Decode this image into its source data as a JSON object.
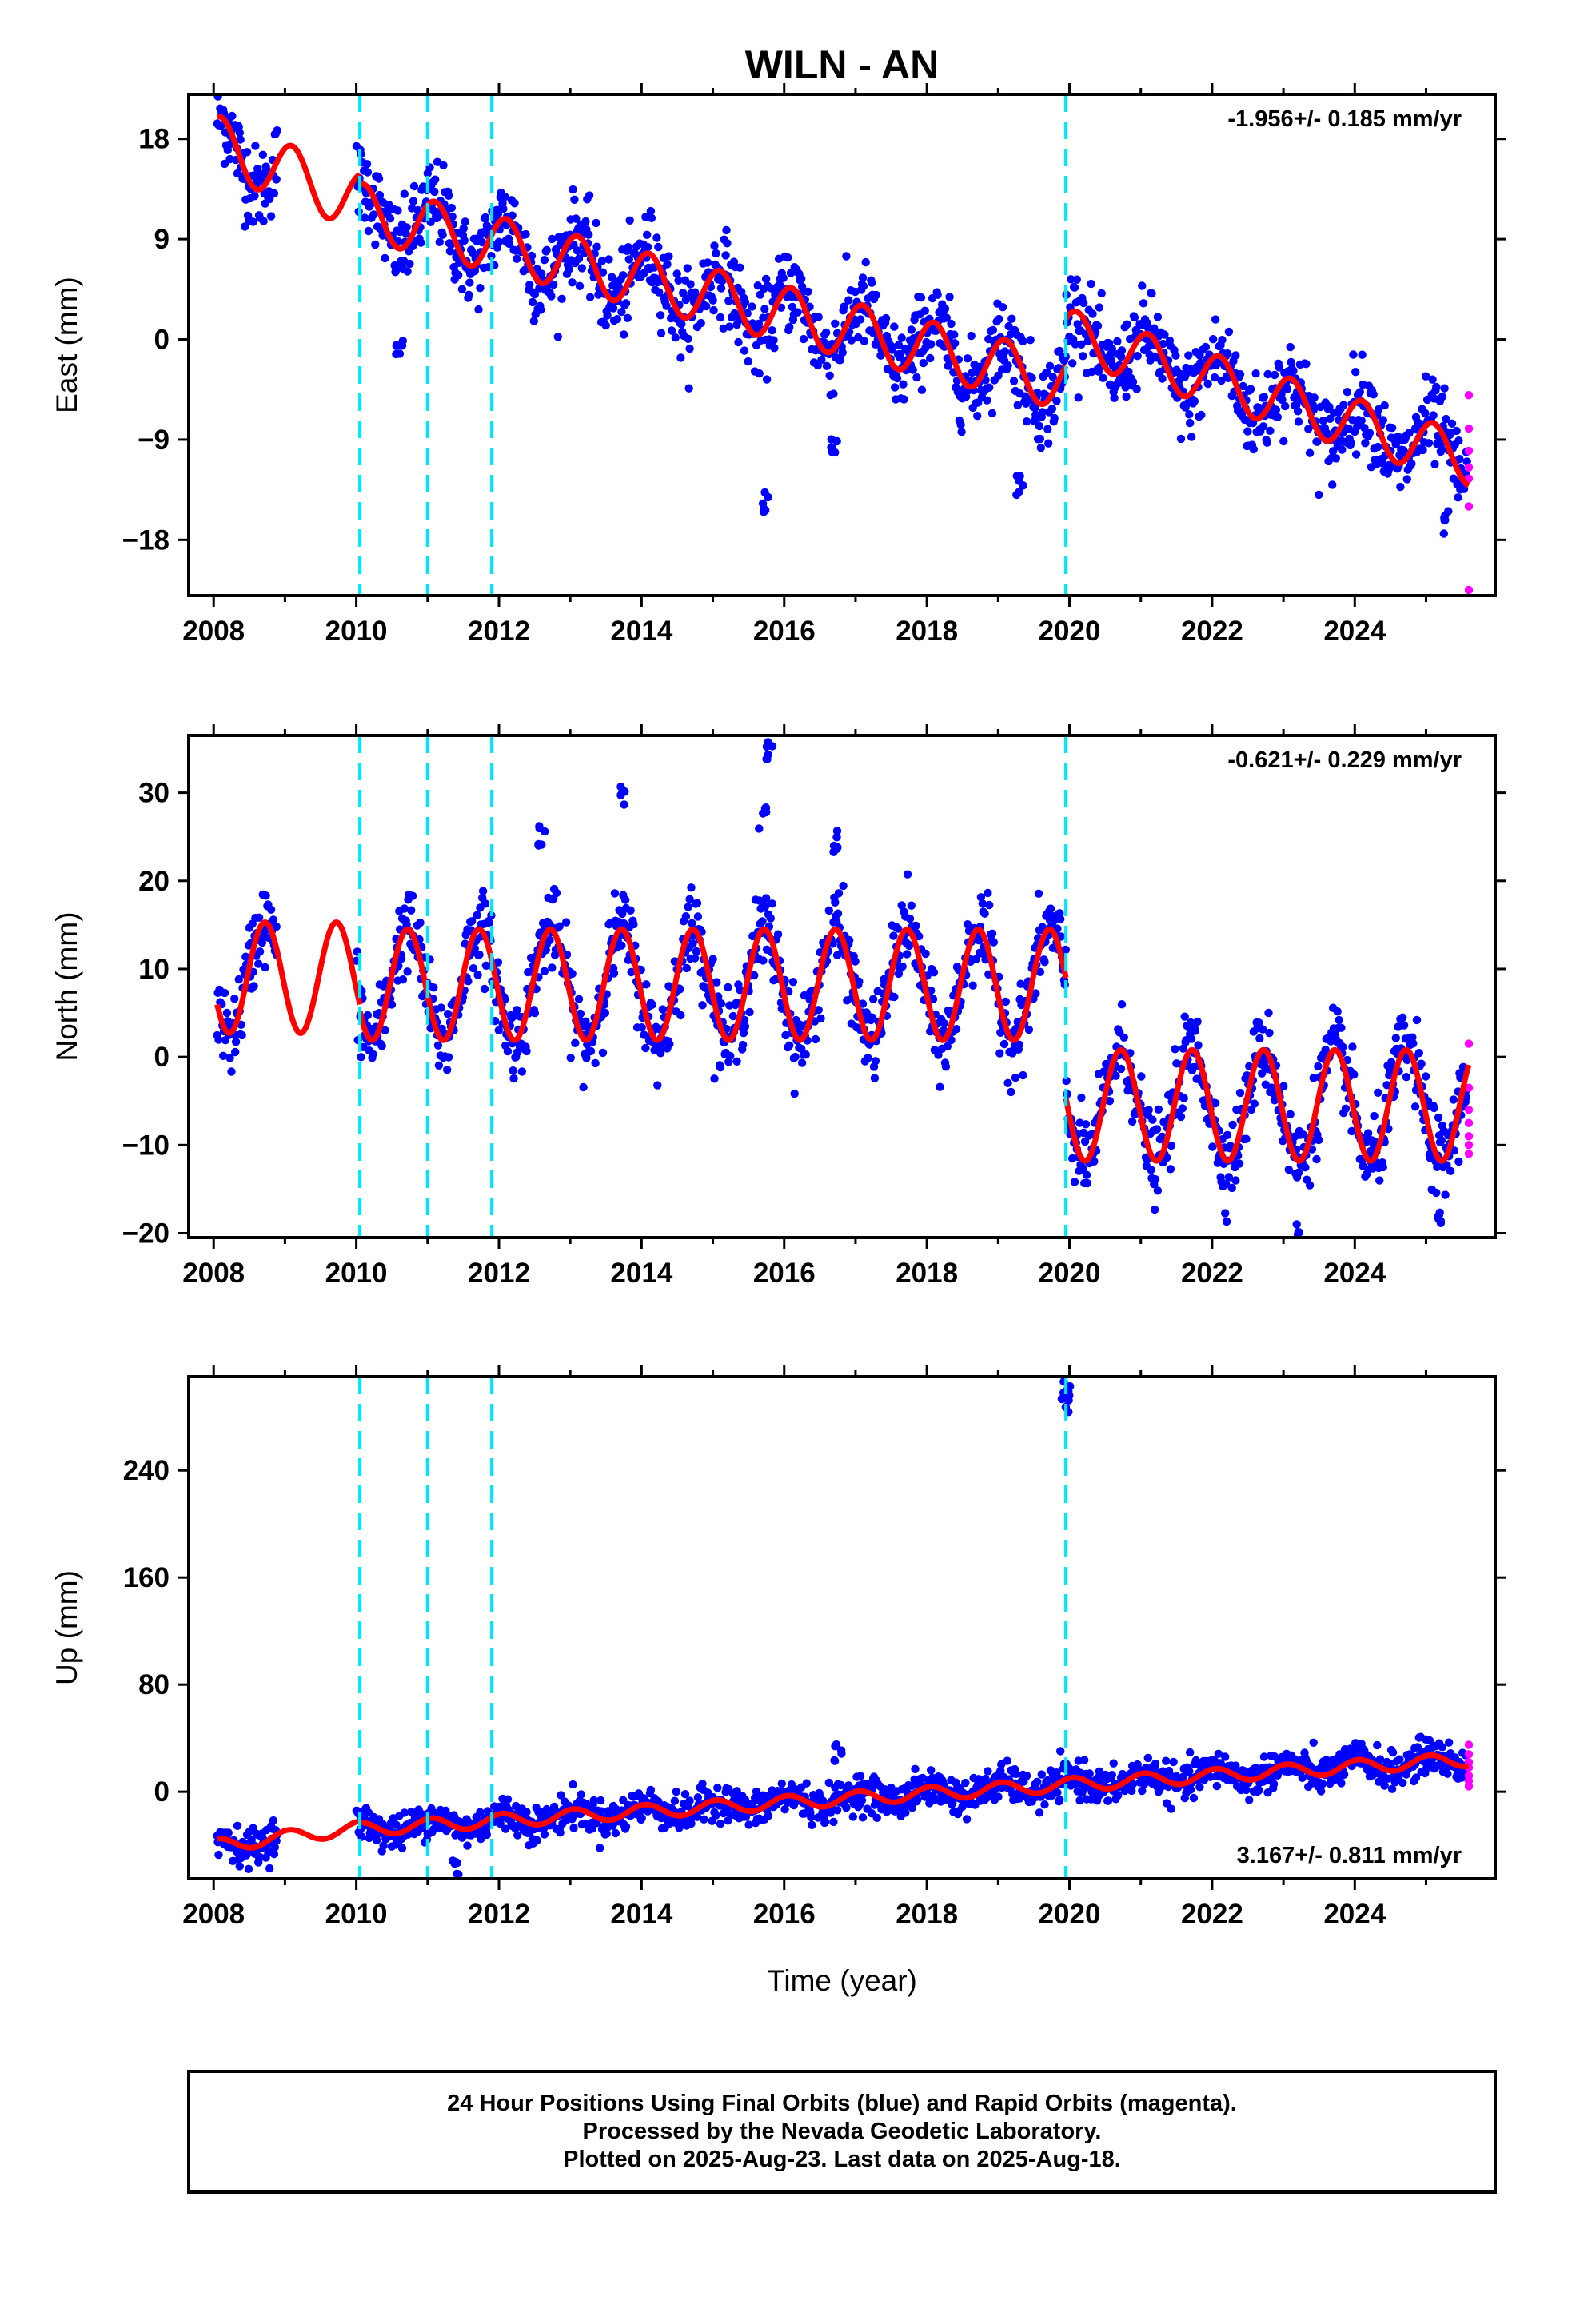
{
  "title": "WILN - AN",
  "xlabel": "Time (year)",
  "colors": {
    "final": "#0000ff",
    "rapid": "#ff00ff",
    "model": "#ff0000",
    "offset": "#00e5ff",
    "frame": "#000000"
  },
  "footer": {
    "line1": "24 Hour Positions Using Final Orbits (blue) and Rapid Orbits (magenta).",
    "line2": "Processed by the Nevada Geodetic Laboratory.",
    "line3": "Plotted on 2025-Aug-23. Last data on 2025-Aug-18."
  },
  "chart_data": [
    {
      "type": "scatter",
      "component": "east",
      "ylabel": "East (mm)",
      "rate_label": "-1.956+/- 0.185 mm/yr",
      "xlim": [
        2007.65,
        2025.97
      ],
      "ylim": [
        -23,
        22
      ],
      "xticks": [
        2008,
        2010,
        2012,
        2014,
        2016,
        2018,
        2020,
        2022,
        2024
      ],
      "yticks": [
        18,
        9,
        0,
        -9,
        -18
      ],
      "ytick_labels": [
        "18",
        "9",
        "0",
        "−9",
        "−18"
      ],
      "offsets": [
        2010.05,
        2011.0,
        2011.9,
        2019.95
      ],
      "model_breaks": [
        2010.05,
        2019.95
      ],
      "segments": [
        {
          "t0": 2008.05,
          "t1": 2010.05,
          "y0": 17.5,
          "slope": -2.6,
          "amp": 2.6,
          "phase": 0.1,
          "shift": 0.0
        },
        {
          "t0": 2010.05,
          "t1": 2019.95,
          "y0": 11.5,
          "slope": -1.55,
          "amp": 2.5,
          "phase": 0.1,
          "shift": 0.0
        },
        {
          "t0": 2019.95,
          "t1": 2025.6,
          "y0": 0.5,
          "slope": -2.0,
          "amp": 2.3,
          "phase": 0.1,
          "shift": 0.0
        }
      ],
      "noise": 1.9,
      "gaps": [
        [
          2008.9,
          2010.0
        ]
      ],
      "spikes": [
        [
          2010.6,
          -0.5
        ],
        [
          2015.75,
          -14.5
        ],
        [
          2016.7,
          -9.5
        ],
        [
          2019.3,
          -13.0
        ],
        [
          2025.3,
          -16.5
        ]
      ],
      "rapid": [
        -5.0,
        -8.0,
        -10.0,
        -11.5,
        -12.5,
        -15.0,
        -22.5
      ]
    },
    {
      "type": "scatter",
      "component": "north",
      "ylabel": "North (mm)",
      "rate_label": "-0.621+/- 0.229 mm/yr",
      "xlim": [
        2007.65,
        2025.97
      ],
      "ylim": [
        -20.5,
        36.5
      ],
      "xticks": [
        2008,
        2010,
        2012,
        2014,
        2016,
        2018,
        2020,
        2022,
        2024
      ],
      "yticks": [
        30,
        20,
        10,
        0,
        -10,
        -20
      ],
      "ytick_labels": [
        "30",
        "20",
        "10",
        "0",
        "−10",
        "−20"
      ],
      "offsets": [
        2010.05,
        2011.0,
        2011.9,
        2019.95
      ],
      "model_breaks": [
        2010.05,
        2019.95
      ],
      "segments": [
        {
          "t0": 2008.05,
          "t1": 2010.05,
          "y0": 9.0,
          "slope": 0.0,
          "amp": 6.3,
          "phase": 0.72,
          "shift": 0.0
        },
        {
          "t0": 2010.05,
          "t1": 2019.95,
          "y0": 8.2,
          "slope": 0.0,
          "amp": 6.3,
          "phase": 0.72,
          "shift": 0.0
        },
        {
          "t0": 2019.95,
          "t1": 2025.6,
          "y0": -5.5,
          "slope": 0.0,
          "amp": 6.3,
          "phase": 0.72,
          "shift": 0.0
        }
      ],
      "noise": 2.3,
      "gaps": [
        [
          2008.9,
          2010.0
        ]
      ],
      "spikes": [
        [
          2013.72,
          30.0
        ],
        [
          2015.78,
          35.0
        ],
        [
          2015.7,
          27.0
        ],
        [
          2016.72,
          24.5
        ],
        [
          2012.6,
          25.0
        ],
        [
          2023.2,
          -19.5
        ],
        [
          2025.2,
          -18.0
        ]
      ],
      "rapid": [
        1.5,
        -3.5,
        -6.0,
        -7.5,
        -9.0,
        -10.0,
        -11.0
      ]
    },
    {
      "type": "scatter",
      "component": "up",
      "ylabel": "Up (mm)",
      "rate_label": "3.167+/- 0.811 mm/yr",
      "xlim": [
        2007.65,
        2025.97
      ],
      "ylim": [
        -65,
        310
      ],
      "xticks": [
        2008,
        2010,
        2012,
        2014,
        2016,
        2018,
        2020,
        2022,
        2024
      ],
      "yticks": [
        240,
        160,
        80,
        0
      ],
      "ytick_labels": [
        "240",
        "160",
        "80",
        "0"
      ],
      "offsets": [
        2010.05,
        2011.0,
        2011.9,
        2019.95
      ],
      "model_breaks": [
        2010.05
      ],
      "segments": [
        {
          "t0": 2008.05,
          "t1": 2010.05,
          "y0": -40.0,
          "slope": 6.5,
          "amp": 5.0,
          "phase": 0.05,
          "shift": 0.0
        },
        {
          "t0": 2010.05,
          "t1": 2025.6,
          "y0": -28.0,
          "slope": 3.35,
          "amp": 5.0,
          "phase": 0.05,
          "shift": 0.0
        }
      ],
      "noise": 6.5,
      "gaps": [
        [
          2008.9,
          2010.0
        ]
      ],
      "spikes": [
        [
          2019.95,
          295.0
        ],
        [
          2019.93,
          290.0
        ],
        [
          2019.97,
          300.0
        ],
        [
          2016.75,
          30.0
        ],
        [
          2011.4,
          -60.0
        ]
      ],
      "rapid": [
        35.0,
        28.0,
        22.0,
        18.0,
        12.0,
        8.0,
        4.0
      ]
    }
  ]
}
